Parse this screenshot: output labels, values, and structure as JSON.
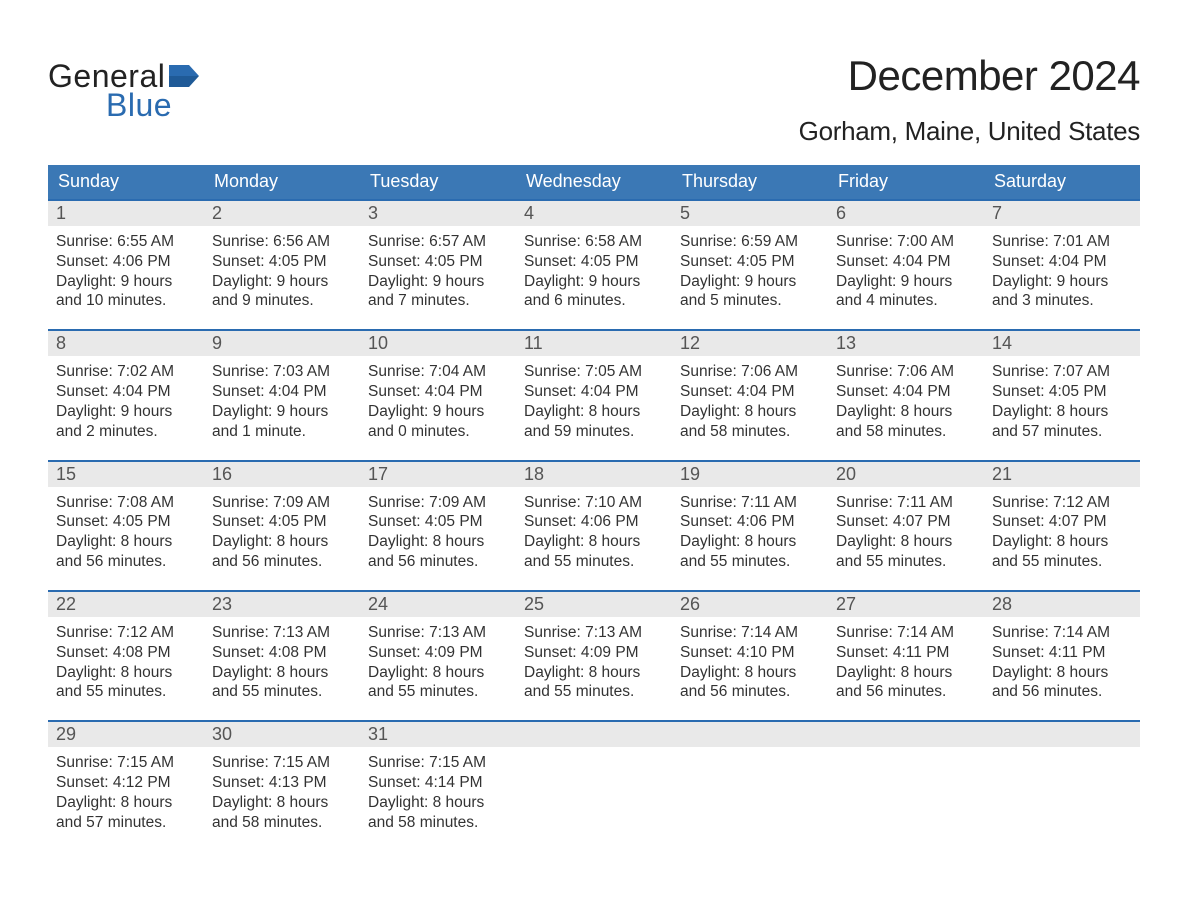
{
  "logo": {
    "word1": "General",
    "word2": "Blue",
    "flag_color": "#2a6bb0"
  },
  "header": {
    "title": "December 2024",
    "location": "Gorham, Maine, United States"
  },
  "calendar": {
    "type": "table",
    "day_labels": [
      "Sunday",
      "Monday",
      "Tuesday",
      "Wednesday",
      "Thursday",
      "Friday",
      "Saturday"
    ],
    "header_bg": "#3b78b5",
    "header_fg": "#ffffff",
    "week_border_color": "#2a6bb0",
    "daynum_bg": "#e9e9e9",
    "body_fontsize": 15.5,
    "header_fontsize": 18,
    "weeks": [
      [
        {
          "n": "1",
          "sunrise": "Sunrise: 6:55 AM",
          "sunset": "Sunset: 4:06 PM",
          "d1": "Daylight: 9 hours",
          "d2": "and 10 minutes."
        },
        {
          "n": "2",
          "sunrise": "Sunrise: 6:56 AM",
          "sunset": "Sunset: 4:05 PM",
          "d1": "Daylight: 9 hours",
          "d2": "and 9 minutes."
        },
        {
          "n": "3",
          "sunrise": "Sunrise: 6:57 AM",
          "sunset": "Sunset: 4:05 PM",
          "d1": "Daylight: 9 hours",
          "d2": "and 7 minutes."
        },
        {
          "n": "4",
          "sunrise": "Sunrise: 6:58 AM",
          "sunset": "Sunset: 4:05 PM",
          "d1": "Daylight: 9 hours",
          "d2": "and 6 minutes."
        },
        {
          "n": "5",
          "sunrise": "Sunrise: 6:59 AM",
          "sunset": "Sunset: 4:05 PM",
          "d1": "Daylight: 9 hours",
          "d2": "and 5 minutes."
        },
        {
          "n": "6",
          "sunrise": "Sunrise: 7:00 AM",
          "sunset": "Sunset: 4:04 PM",
          "d1": "Daylight: 9 hours",
          "d2": "and 4 minutes."
        },
        {
          "n": "7",
          "sunrise": "Sunrise: 7:01 AM",
          "sunset": "Sunset: 4:04 PM",
          "d1": "Daylight: 9 hours",
          "d2": "and 3 minutes."
        }
      ],
      [
        {
          "n": "8",
          "sunrise": "Sunrise: 7:02 AM",
          "sunset": "Sunset: 4:04 PM",
          "d1": "Daylight: 9 hours",
          "d2": "and 2 minutes."
        },
        {
          "n": "9",
          "sunrise": "Sunrise: 7:03 AM",
          "sunset": "Sunset: 4:04 PM",
          "d1": "Daylight: 9 hours",
          "d2": "and 1 minute."
        },
        {
          "n": "10",
          "sunrise": "Sunrise: 7:04 AM",
          "sunset": "Sunset: 4:04 PM",
          "d1": "Daylight: 9 hours",
          "d2": "and 0 minutes."
        },
        {
          "n": "11",
          "sunrise": "Sunrise: 7:05 AM",
          "sunset": "Sunset: 4:04 PM",
          "d1": "Daylight: 8 hours",
          "d2": "and 59 minutes."
        },
        {
          "n": "12",
          "sunrise": "Sunrise: 7:06 AM",
          "sunset": "Sunset: 4:04 PM",
          "d1": "Daylight: 8 hours",
          "d2": "and 58 minutes."
        },
        {
          "n": "13",
          "sunrise": "Sunrise: 7:06 AM",
          "sunset": "Sunset: 4:04 PM",
          "d1": "Daylight: 8 hours",
          "d2": "and 58 minutes."
        },
        {
          "n": "14",
          "sunrise": "Sunrise: 7:07 AM",
          "sunset": "Sunset: 4:05 PM",
          "d1": "Daylight: 8 hours",
          "d2": "and 57 minutes."
        }
      ],
      [
        {
          "n": "15",
          "sunrise": "Sunrise: 7:08 AM",
          "sunset": "Sunset: 4:05 PM",
          "d1": "Daylight: 8 hours",
          "d2": "and 56 minutes."
        },
        {
          "n": "16",
          "sunrise": "Sunrise: 7:09 AM",
          "sunset": "Sunset: 4:05 PM",
          "d1": "Daylight: 8 hours",
          "d2": "and 56 minutes."
        },
        {
          "n": "17",
          "sunrise": "Sunrise: 7:09 AM",
          "sunset": "Sunset: 4:05 PM",
          "d1": "Daylight: 8 hours",
          "d2": "and 56 minutes."
        },
        {
          "n": "18",
          "sunrise": "Sunrise: 7:10 AM",
          "sunset": "Sunset: 4:06 PM",
          "d1": "Daylight: 8 hours",
          "d2": "and 55 minutes."
        },
        {
          "n": "19",
          "sunrise": "Sunrise: 7:11 AM",
          "sunset": "Sunset: 4:06 PM",
          "d1": "Daylight: 8 hours",
          "d2": "and 55 minutes."
        },
        {
          "n": "20",
          "sunrise": "Sunrise: 7:11 AM",
          "sunset": "Sunset: 4:07 PM",
          "d1": "Daylight: 8 hours",
          "d2": "and 55 minutes."
        },
        {
          "n": "21",
          "sunrise": "Sunrise: 7:12 AM",
          "sunset": "Sunset: 4:07 PM",
          "d1": "Daylight: 8 hours",
          "d2": "and 55 minutes."
        }
      ],
      [
        {
          "n": "22",
          "sunrise": "Sunrise: 7:12 AM",
          "sunset": "Sunset: 4:08 PM",
          "d1": "Daylight: 8 hours",
          "d2": "and 55 minutes."
        },
        {
          "n": "23",
          "sunrise": "Sunrise: 7:13 AM",
          "sunset": "Sunset: 4:08 PM",
          "d1": "Daylight: 8 hours",
          "d2": "and 55 minutes."
        },
        {
          "n": "24",
          "sunrise": "Sunrise: 7:13 AM",
          "sunset": "Sunset: 4:09 PM",
          "d1": "Daylight: 8 hours",
          "d2": "and 55 minutes."
        },
        {
          "n": "25",
          "sunrise": "Sunrise: 7:13 AM",
          "sunset": "Sunset: 4:09 PM",
          "d1": "Daylight: 8 hours",
          "d2": "and 55 minutes."
        },
        {
          "n": "26",
          "sunrise": "Sunrise: 7:14 AM",
          "sunset": "Sunset: 4:10 PM",
          "d1": "Daylight: 8 hours",
          "d2": "and 56 minutes."
        },
        {
          "n": "27",
          "sunrise": "Sunrise: 7:14 AM",
          "sunset": "Sunset: 4:11 PM",
          "d1": "Daylight: 8 hours",
          "d2": "and 56 minutes."
        },
        {
          "n": "28",
          "sunrise": "Sunrise: 7:14 AM",
          "sunset": "Sunset: 4:11 PM",
          "d1": "Daylight: 8 hours",
          "d2": "and 56 minutes."
        }
      ],
      [
        {
          "n": "29",
          "sunrise": "Sunrise: 7:15 AM",
          "sunset": "Sunset: 4:12 PM",
          "d1": "Daylight: 8 hours",
          "d2": "and 57 minutes."
        },
        {
          "n": "30",
          "sunrise": "Sunrise: 7:15 AM",
          "sunset": "Sunset: 4:13 PM",
          "d1": "Daylight: 8 hours",
          "d2": "and 58 minutes."
        },
        {
          "n": "31",
          "sunrise": "Sunrise: 7:15 AM",
          "sunset": "Sunset: 4:14 PM",
          "d1": "Daylight: 8 hours",
          "d2": "and 58 minutes."
        },
        null,
        null,
        null,
        null
      ]
    ]
  }
}
